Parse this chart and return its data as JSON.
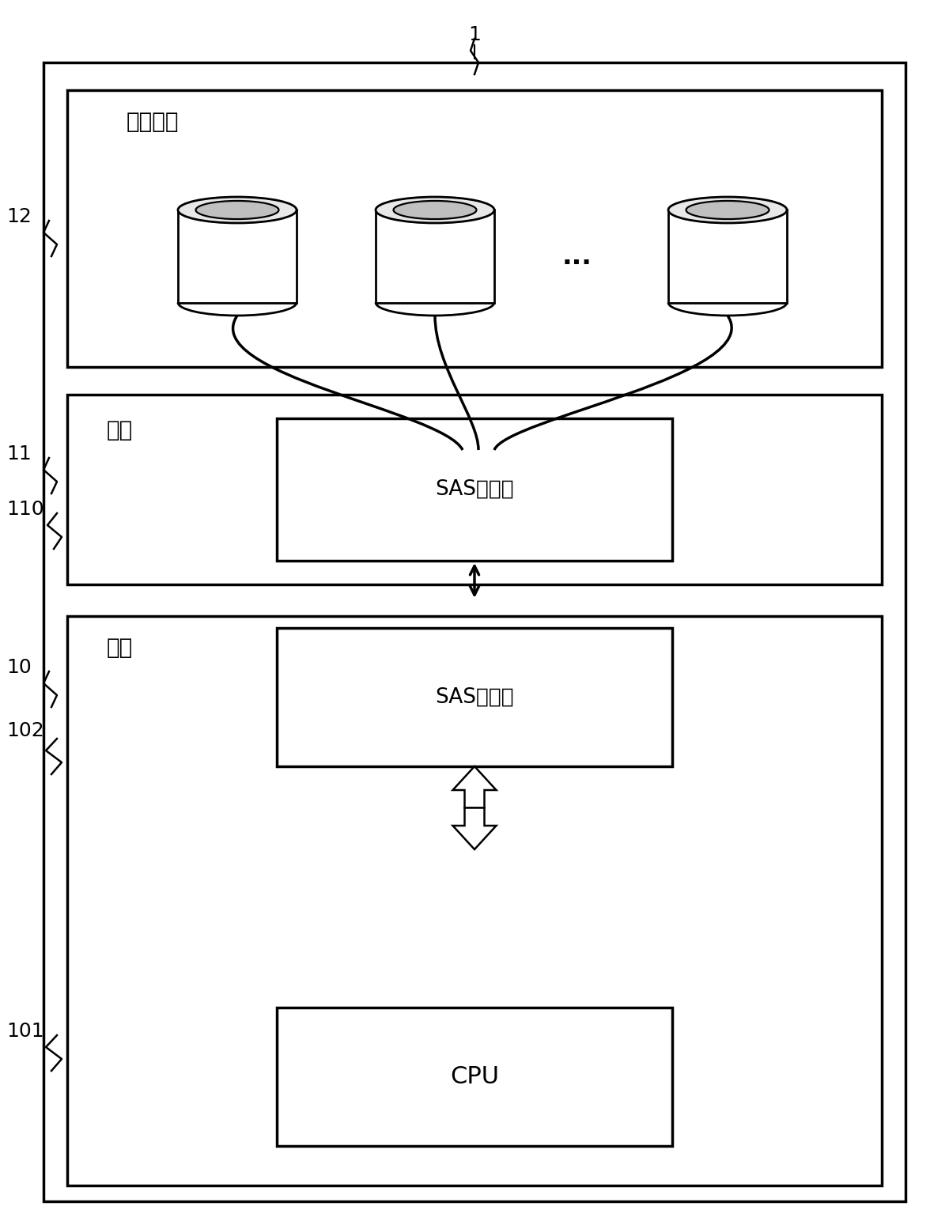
{
  "bg_color": "#ffffff",
  "line_color": "#000000",
  "label_1": "1",
  "label_12": "12",
  "label_11": "11",
  "label_110": "110",
  "label_10": "10",
  "label_102": "102",
  "label_101": "101",
  "text_disk_unit": "硬盘单元",
  "text_backplane": "背板",
  "text_sas_expander": "SAS扩展器",
  "text_motherboard": "主板",
  "text_sas_controller": "SAS控制器",
  "text_cpu": "CPU",
  "text_dots": "..."
}
